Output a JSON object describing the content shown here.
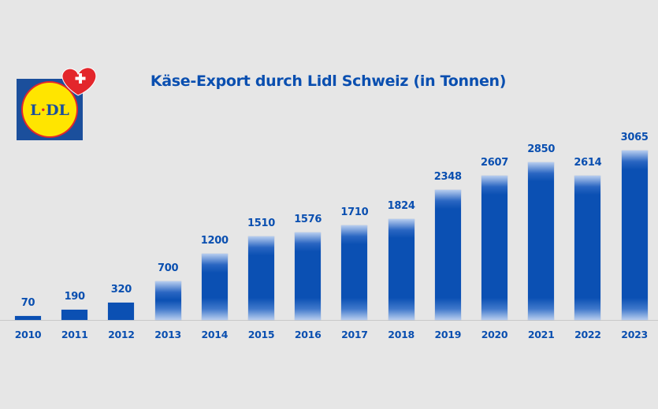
{
  "chart_data": {
    "type": "bar",
    "title": "Käse-Export durch Lidl Schweiz (in Tonnen)",
    "xlabel": "",
    "ylabel": "",
    "categories": [
      "2010",
      "2011",
      "2012",
      "2013",
      "2014",
      "2015",
      "2016",
      "2017",
      "2018",
      "2019",
      "2020",
      "2021",
      "2022",
      "2023"
    ],
    "values": [
      70,
      190,
      320,
      700,
      1200,
      1510,
      1576,
      1710,
      1824,
      2348,
      2607,
      2850,
      2614,
      3065
    ],
    "ylim": [
      0,
      3065
    ],
    "grid": false,
    "legend": null,
    "data_labels": true,
    "bar_color": "#0b50b3"
  },
  "logo": {
    "brand": "LIDL",
    "badge": "heart-with-swiss-cross"
  },
  "colors": {
    "text": "#0a4fb0",
    "background": "#e6e6e6",
    "logo_blue": "#1b4f9c",
    "logo_yellow": "#ffe500",
    "logo_red": "#e3262b"
  }
}
